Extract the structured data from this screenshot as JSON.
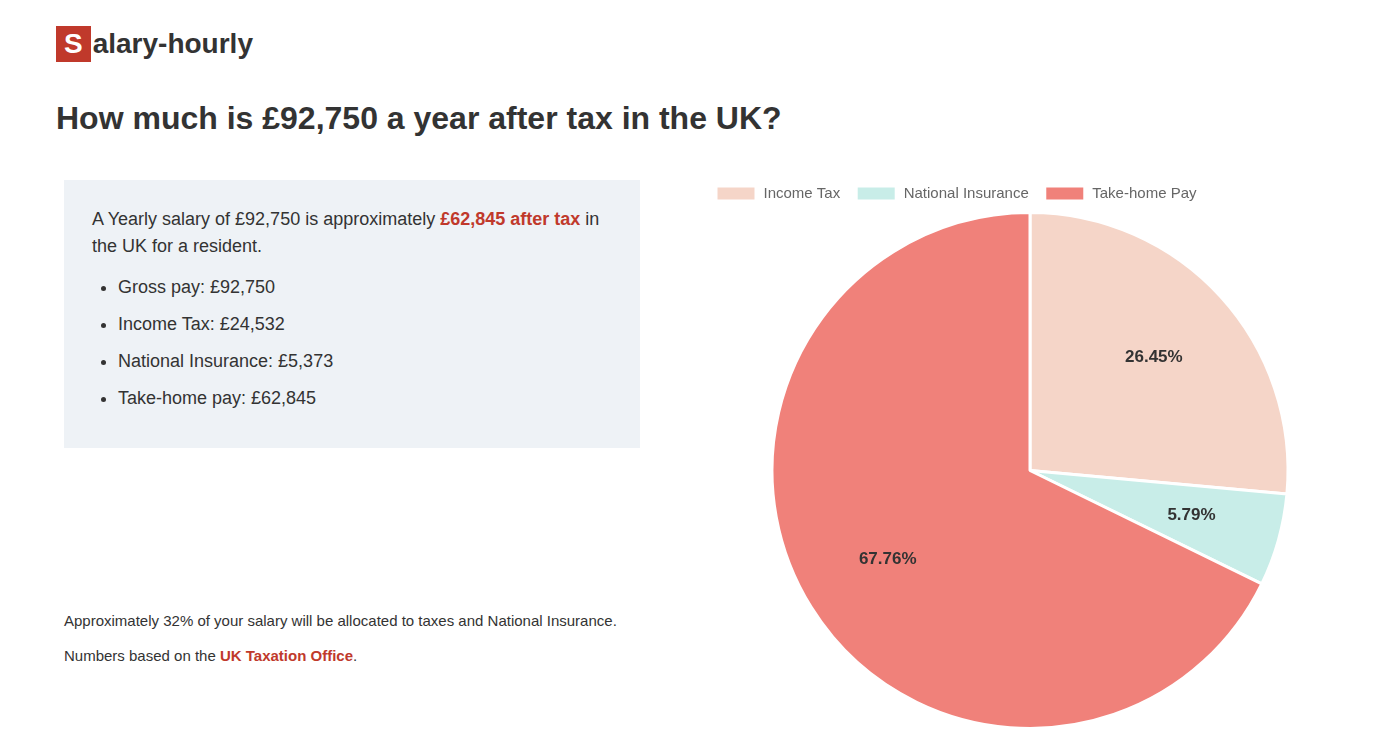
{
  "chart_data": {
    "type": "pie",
    "title": "How much is £92,750 a year after tax in the UK?",
    "categories": [
      "Income Tax",
      "National Insurance",
      "Take-home Pay"
    ],
    "values": [
      26.45,
      5.79,
      67.76
    ],
    "colors": [
      "#f5d5c8",
      "#c8ede8",
      "#f0817a"
    ],
    "data_labels": true,
    "value_labels": [
      "26.45%",
      "5.79%",
      "67.76%"
    ],
    "legend": "top",
    "annotations": {
      "logo": [
        {
          "text": "S",
          "color": "#c0392b"
        },
        {
          "text": "alary-hourly"
        }
      ],
      "intro": [
        [
          {
            "text": "A Yearly salary of £92,750 is approximately "
          },
          {
            "text": "£62,845 after tax",
            "color": "#c0392b"
          },
          {
            "text": " in the UK for a resident."
          }
        ]
      ],
      "bullets": [
        "Gross pay: £92,750",
        "Income Tax: £24,532",
        "National Insurance: £5,373",
        "Take-home pay: £62,845"
      ],
      "footer": [
        [
          {
            "text": "Approximately 32% of your salary will be allocated to taxes and National Insurance."
          }
        ],
        [
          {
            "text": "Numbers based on the "
          },
          {
            "text": "UK Taxation Office",
            "color": "#c0392b"
          },
          {
            "text": "."
          }
        ]
      ]
    }
  }
}
